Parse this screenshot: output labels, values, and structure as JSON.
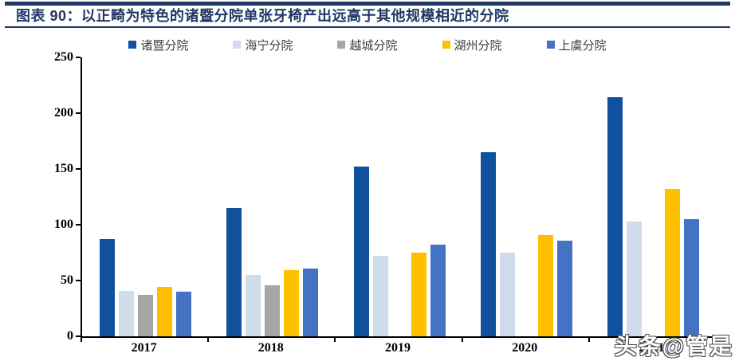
{
  "header": {
    "title": "图表 90：以正畸为特色的诸暨分院单张牙椅产出远高于其他规模相近的分院",
    "accent_color": "#1F3864"
  },
  "watermark": "头条@管是",
  "chart_data": {
    "type": "bar",
    "title": "以正畸为特色的诸暨分院单张牙椅产出远高于其他规模相近的分院",
    "categories": [
      "2017",
      "2018",
      "2019",
      "2020",
      "2021"
    ],
    "series": [
      {
        "name": "诸暨分院",
        "color": "#10519E",
        "values": [
          87,
          115,
          152,
          165,
          214
        ]
      },
      {
        "name": "海宁分院",
        "color": "#CFDCEC",
        "values": [
          41,
          55,
          72,
          75,
          103
        ]
      },
      {
        "name": "越城分院",
        "color": "#A6A6A6",
        "values": [
          37,
          46,
          null,
          null,
          null
        ]
      },
      {
        "name": "湖州分院",
        "color": "#FFC000",
        "values": [
          44,
          59,
          75,
          91,
          132
        ]
      },
      {
        "name": "上虞分院",
        "color": "#4472C4",
        "values": [
          40,
          61,
          82,
          86,
          105
        ]
      }
    ],
    "xlabel": "",
    "ylabel": "",
    "ylim": [
      0,
      250
    ],
    "yticks": [
      0,
      50,
      100,
      150,
      200,
      250
    ],
    "legend_position": "top",
    "grid": false
  }
}
